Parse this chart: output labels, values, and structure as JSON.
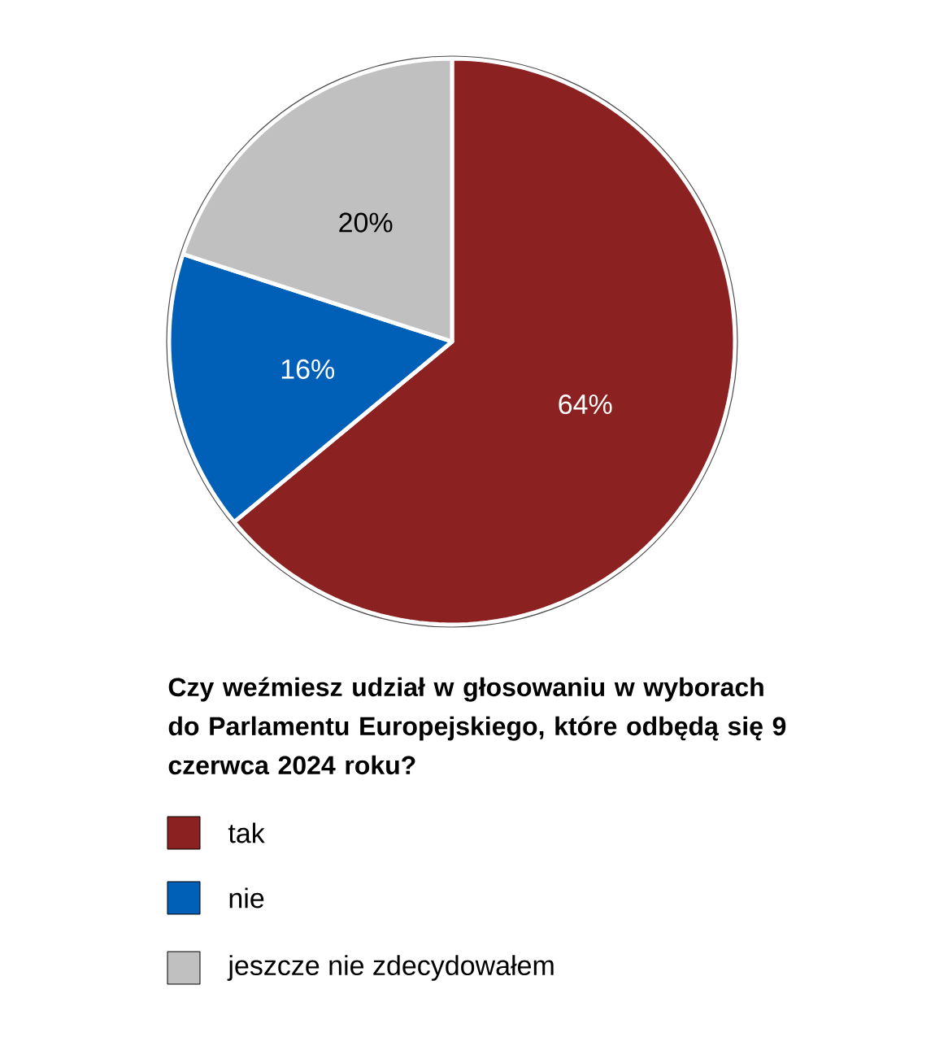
{
  "chart_data": {
    "type": "pie",
    "title": "Czy weźmiesz udział w głosowaniu w wyborach do Parlamentu Europejskiego, które odbędą się 9 czerwca 2024 roku?",
    "categories": [
      "tak",
      "nie",
      "jeszcze nie zdecydowałem"
    ],
    "values": [
      64,
      16,
      20
    ],
    "value_labels": [
      "64%",
      "16%",
      "20%"
    ],
    "colors": [
      "#8b2120",
      "#0060b8",
      "#c0c0c0"
    ],
    "legend": "bottom"
  }
}
